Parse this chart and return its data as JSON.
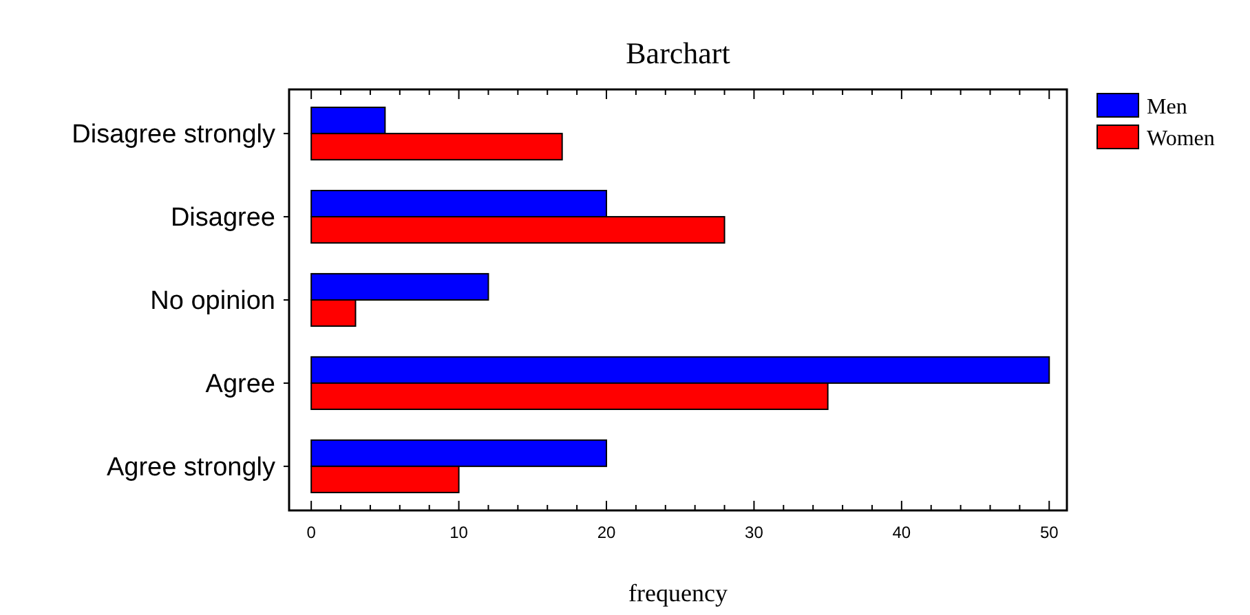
{
  "chart_data": {
    "type": "bar",
    "orientation": "horizontal",
    "title": "Barchart",
    "xlabel": "frequency",
    "categories": [
      "Disagree strongly",
      "Disagree",
      "No opinion",
      "Agree",
      "Agree strongly"
    ],
    "series": [
      {
        "name": "Men",
        "color": "#0000ff",
        "values": [
          5,
          20,
          12,
          50,
          20
        ]
      },
      {
        "name": "Women",
        "color": "#ff0000",
        "values": [
          17,
          28,
          3,
          35,
          10
        ]
      }
    ],
    "xlim": [
      -1.5,
      51.2
    ],
    "xticks": [
      0,
      {
        "value": 2,
        "label": null
      },
      {
        "value": 4,
        "label": null
      },
      {
        "value": 6,
        "label": null
      },
      {
        "value": 8,
        "label": null
      },
      10,
      {
        "value": 12,
        "label": null
      },
      {
        "value": 14,
        "label": null
      },
      {
        "value": 16,
        "label": null
      },
      {
        "value": 18,
        "label": null
      },
      20,
      {
        "value": 22,
        "label": null
      },
      {
        "value": 24,
        "label": null
      },
      {
        "value": 26,
        "label": null
      },
      {
        "value": 28,
        "label": null
      },
      30,
      {
        "value": 32,
        "label": null
      },
      {
        "value": 34,
        "label": null
      },
      {
        "value": 36,
        "label": null
      },
      {
        "value": 38,
        "label": null
      },
      40,
      {
        "value": 42,
        "label": null
      },
      {
        "value": 44,
        "label": null
      },
      {
        "value": 46,
        "label": null
      },
      {
        "value": 48,
        "label": null
      },
      50
    ],
    "legend": "top right",
    "grid": false
  }
}
